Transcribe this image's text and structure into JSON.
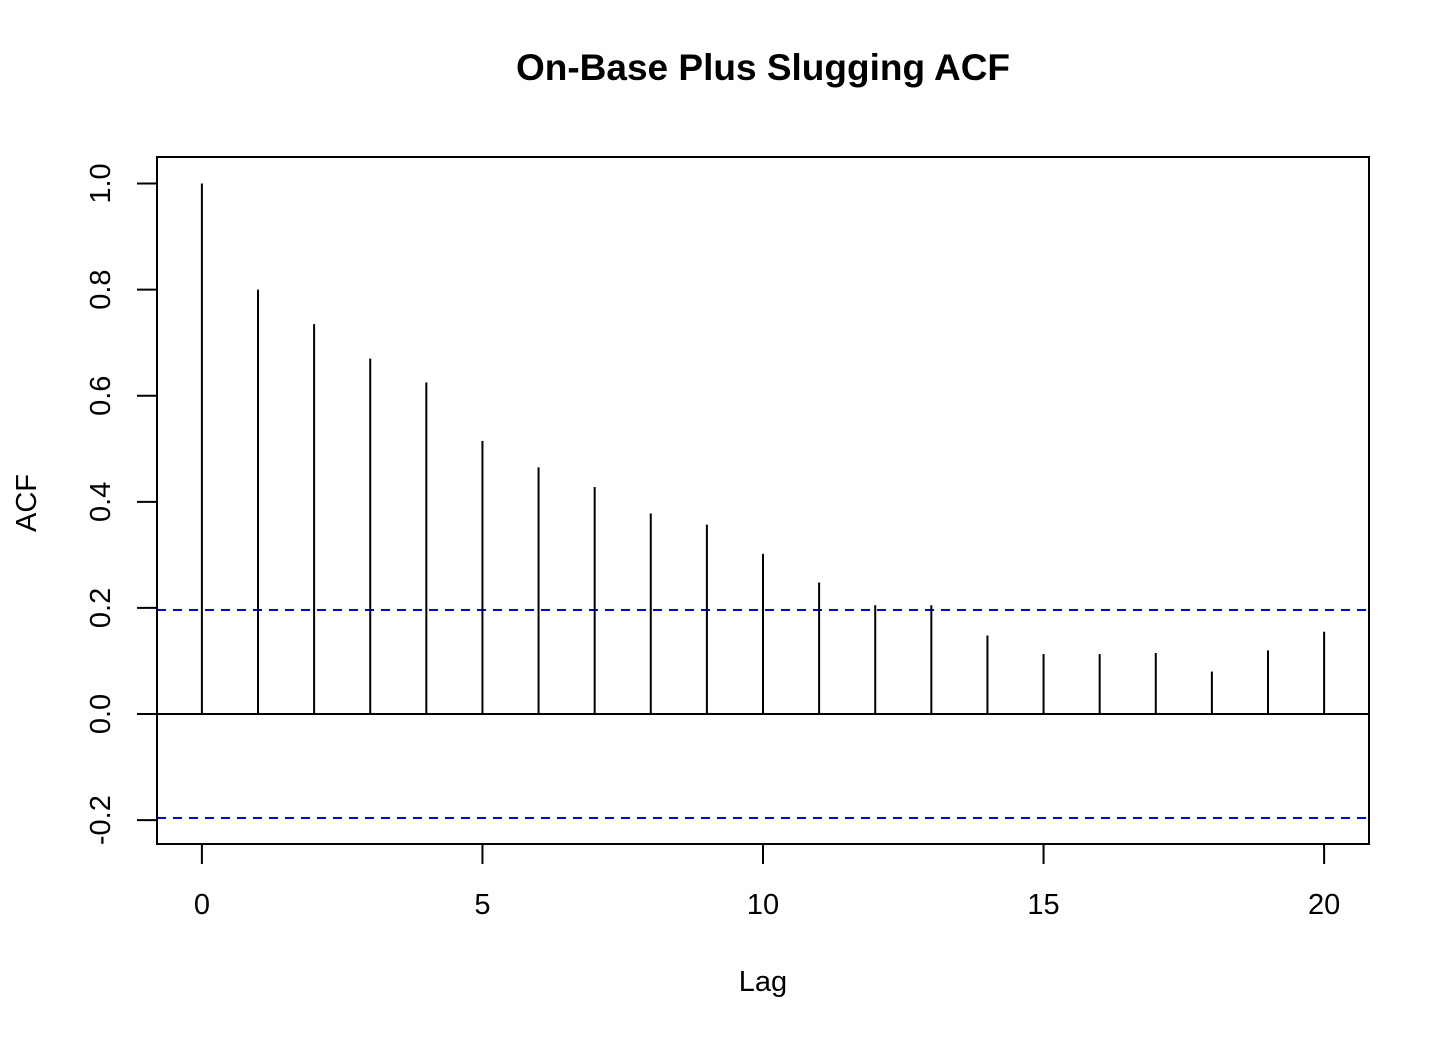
{
  "chart_data": {
    "type": "bar",
    "title": "On-Base Plus Slugging ACF",
    "xlabel": "Lag",
    "ylabel": "ACF",
    "x": [
      0,
      1,
      2,
      3,
      4,
      5,
      6,
      7,
      8,
      9,
      10,
      11,
      12,
      13,
      14,
      15,
      16,
      17,
      18,
      19,
      20
    ],
    "values": [
      1.0,
      0.8,
      0.735,
      0.67,
      0.625,
      0.515,
      0.465,
      0.428,
      0.378,
      0.357,
      0.302,
      0.248,
      0.205,
      0.205,
      0.148,
      0.113,
      0.113,
      0.115,
      0.08,
      0.12,
      0.155
    ],
    "xlim": [
      -0.8,
      20.8
    ],
    "ylim": [
      -0.245,
      1.05
    ],
    "x_ticks": [
      0,
      5,
      10,
      15,
      20
    ],
    "x_tick_labels": [
      "0",
      "5",
      "10",
      "15",
      "20"
    ],
    "y_ticks": [
      -0.2,
      0.0,
      0.2,
      0.4,
      0.6,
      0.8,
      1.0
    ],
    "y_tick_labels": [
      "-0.2",
      "0.0",
      "0.2",
      "0.4",
      "0.6",
      "0.8",
      "1.0"
    ],
    "confidence_bounds": [
      0.196,
      -0.196
    ],
    "ci_color": "#0000ee",
    "spike_color": "#000000",
    "grid": false
  }
}
